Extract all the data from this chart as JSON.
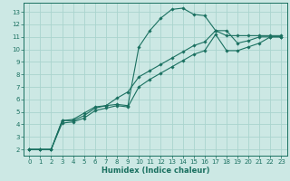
{
  "title": "",
  "xlabel": "Humidex (Indice chaleur)",
  "bg_color": "#cce8e4",
  "grid_color": "#aad4ce",
  "line_color": "#1a7060",
  "xlim": [
    -0.5,
    23.5
  ],
  "ylim": [
    1.5,
    13.7
  ],
  "xticks": [
    0,
    1,
    2,
    3,
    4,
    5,
    6,
    7,
    8,
    9,
    10,
    11,
    12,
    13,
    14,
    15,
    16,
    17,
    18,
    19,
    20,
    21,
    22,
    23
  ],
  "yticks": [
    2,
    3,
    4,
    5,
    6,
    7,
    8,
    9,
    10,
    11,
    12,
    13
  ],
  "line1_x": [
    0,
    1,
    2,
    3,
    4,
    5,
    6,
    7,
    8,
    9,
    10,
    11,
    12,
    13,
    14,
    15,
    16,
    17,
    18,
    19,
    20,
    21,
    22,
    23
  ],
  "line1_y": [
    2.0,
    2.0,
    2.0,
    4.3,
    4.3,
    4.7,
    5.3,
    5.5,
    5.6,
    5.5,
    10.2,
    11.5,
    12.5,
    13.2,
    13.3,
    12.8,
    12.7,
    11.5,
    11.1,
    11.1,
    11.1,
    11.1,
    11.1,
    11.1
  ],
  "line2_x": [
    0,
    1,
    2,
    3,
    4,
    5,
    6,
    7,
    8,
    9,
    10,
    11,
    12,
    13,
    14,
    15,
    16,
    17,
    18,
    19,
    20,
    21,
    22,
    23
  ],
  "line2_y": [
    2.0,
    2.0,
    2.0,
    4.3,
    4.4,
    4.9,
    5.4,
    5.5,
    6.1,
    6.6,
    7.8,
    8.3,
    8.8,
    9.3,
    9.8,
    10.3,
    10.6,
    11.5,
    11.5,
    10.5,
    10.7,
    11.0,
    11.0,
    11.0
  ],
  "line3_x": [
    0,
    1,
    2,
    3,
    4,
    5,
    6,
    7,
    8,
    9,
    10,
    11,
    12,
    13,
    14,
    15,
    16,
    17,
    18,
    19,
    20,
    21,
    22,
    23
  ],
  "line3_y": [
    2.0,
    2.0,
    2.0,
    4.1,
    4.2,
    4.5,
    5.1,
    5.3,
    5.5,
    5.4,
    7.0,
    7.6,
    8.1,
    8.6,
    9.1,
    9.6,
    9.9,
    11.2,
    9.9,
    9.9,
    10.2,
    10.5,
    11.0,
    11.0
  ],
  "xlabel_fontsize": 6,
  "tick_fontsize": 5,
  "marker_size": 1.8,
  "line_width": 0.8
}
